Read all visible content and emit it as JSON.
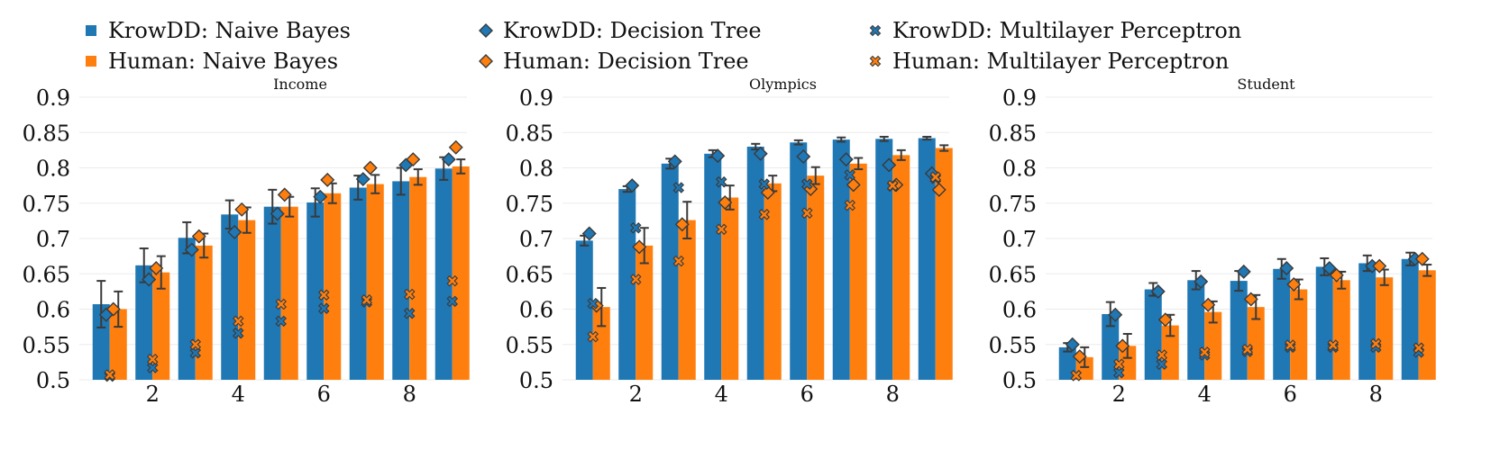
{
  "colors": {
    "krowdd": "#1f77b4",
    "human": "#ff7f0e",
    "error": "#3a3a3a",
    "grid": "#ebebeb",
    "marker_edge": "#3a3a3a"
  },
  "legend": {
    "placement": "top",
    "entries": [
      {
        "label": "KrowDD: Naive Bayes",
        "marker": "square",
        "color": "#1f77b4"
      },
      {
        "label": "KrowDD: Decision Tree",
        "marker": "diamond",
        "color": "#1f77b4"
      },
      {
        "label": "KrowDD: Multilayer Perceptron",
        "marker": "x",
        "color": "#1f77b4"
      },
      {
        "label": "Human: Naive Bayes",
        "marker": "square",
        "color": "#ff7f0e"
      },
      {
        "label": "Human: Decision Tree",
        "marker": "diamond",
        "color": "#ff7f0e"
      },
      {
        "label": "Human: Multilayer Perceptron",
        "marker": "x",
        "color": "#ff7f0e"
      }
    ]
  },
  "chart_data": [
    {
      "type": "bar",
      "title": "Income",
      "x": [
        1,
        2,
        3,
        4,
        5,
        6,
        7,
        8,
        9
      ],
      "xticks": [
        2,
        4,
        6,
        8
      ],
      "ylim": [
        0.5,
        0.9
      ],
      "yticks": [
        0.5,
        0.55,
        0.6,
        0.65,
        0.7,
        0.75,
        0.8,
        0.85,
        0.9
      ],
      "grid": true,
      "series": [
        {
          "name": "KrowDD: Naive Bayes",
          "kind": "bar",
          "values": [
            0.607,
            0.662,
            0.701,
            0.734,
            0.745,
            0.751,
            0.772,
            0.781,
            0.799
          ],
          "err": [
            0.033,
            0.024,
            0.022,
            0.02,
            0.024,
            0.02,
            0.017,
            0.019,
            0.016
          ]
        },
        {
          "name": "Human: Naive Bayes",
          "kind": "bar",
          "values": [
            0.6,
            0.652,
            0.69,
            0.726,
            0.745,
            0.764,
            0.777,
            0.787,
            0.802
          ],
          "err": [
            0.025,
            0.023,
            0.017,
            0.018,
            0.014,
            0.014,
            0.013,
            0.011,
            0.01
          ]
        },
        {
          "name": "KrowDD: Decision Tree",
          "kind": "diamond",
          "values": [
            0.592,
            0.642,
            0.684,
            0.709,
            0.735,
            0.759,
            0.784,
            0.804,
            0.812
          ]
        },
        {
          "name": "Human: Decision Tree",
          "kind": "diamond",
          "values": [
            0.6,
            0.658,
            0.703,
            0.741,
            0.762,
            0.783,
            0.8,
            0.812,
            0.829
          ]
        },
        {
          "name": "KrowDD: Multilayer Perceptron",
          "kind": "x",
          "values": [
            0.505,
            0.517,
            0.538,
            0.566,
            0.583,
            0.601,
            0.61,
            0.594,
            0.611
          ]
        },
        {
          "name": "Human: Multilayer Perceptron",
          "kind": "x",
          "values": [
            0.507,
            0.529,
            0.55,
            0.583,
            0.607,
            0.62,
            0.613,
            0.621,
            0.64
          ]
        }
      ]
    },
    {
      "type": "bar",
      "title": "Olympics",
      "x": [
        1,
        2,
        3,
        4,
        5,
        6,
        7,
        8,
        9
      ],
      "xticks": [
        2,
        4,
        6,
        8
      ],
      "ylim": [
        0.5,
        0.9
      ],
      "yticks": [
        0.5,
        0.55,
        0.6,
        0.65,
        0.7,
        0.75,
        0.8,
        0.85,
        0.9
      ],
      "grid": true,
      "series": [
        {
          "name": "KrowDD: Naive Bayes",
          "kind": "bar",
          "values": [
            0.697,
            0.77,
            0.806,
            0.82,
            0.83,
            0.836,
            0.84,
            0.841,
            0.842
          ],
          "err": [
            0.007,
            0.004,
            0.007,
            0.005,
            0.004,
            0.003,
            0.003,
            0.003,
            0.002
          ]
        },
        {
          "name": "Human: Naive Bayes",
          "kind": "bar",
          "values": [
            0.603,
            0.69,
            0.726,
            0.758,
            0.778,
            0.789,
            0.806,
            0.818,
            0.828
          ],
          "err": [
            0.027,
            0.025,
            0.026,
            0.017,
            0.011,
            0.012,
            0.008,
            0.007,
            0.004
          ]
        },
        {
          "name": "KrowDD: Decision Tree",
          "kind": "diamond",
          "values": [
            0.707,
            0.775,
            0.809,
            0.817,
            0.82,
            0.816,
            0.812,
            0.804,
            0.792
          ]
        },
        {
          "name": "Human: Decision Tree",
          "kind": "diamond",
          "values": [
            0.605,
            0.688,
            0.72,
            0.751,
            0.765,
            0.77,
            0.776,
            0.776,
            0.769
          ]
        },
        {
          "name": "KrowDD: Multilayer Perceptron",
          "kind": "x",
          "values": [
            0.608,
            0.715,
            0.772,
            0.78,
            0.777,
            0.777,
            0.79,
            0.774,
            0.785
          ]
        },
        {
          "name": "Human: Multilayer Perceptron",
          "kind": "x",
          "values": [
            0.561,
            0.642,
            0.668,
            0.713,
            0.734,
            0.736,
            0.747,
            0.775,
            0.787
          ]
        }
      ]
    },
    {
      "type": "bar",
      "title": "Student",
      "x": [
        1,
        2,
        3,
        4,
        5,
        6,
        7,
        8,
        9
      ],
      "xticks": [
        2,
        4,
        6,
        8
      ],
      "ylim": [
        0.5,
        0.9
      ],
      "yticks": [
        0.5,
        0.55,
        0.6,
        0.65,
        0.7,
        0.75,
        0.8,
        0.85,
        0.9
      ],
      "grid": true,
      "series": [
        {
          "name": "KrowDD: Naive Bayes",
          "kind": "bar",
          "values": [
            0.546,
            0.593,
            0.628,
            0.641,
            0.64,
            0.657,
            0.66,
            0.665,
            0.671
          ],
          "err": [
            0.006,
            0.017,
            0.009,
            0.013,
            0.014,
            0.014,
            0.012,
            0.011,
            0.009
          ]
        },
        {
          "name": "Human: Naive Bayes",
          "kind": "bar",
          "values": [
            0.532,
            0.548,
            0.577,
            0.596,
            0.603,
            0.628,
            0.641,
            0.645,
            0.655
          ],
          "err": [
            0.014,
            0.017,
            0.015,
            0.015,
            0.017,
            0.014,
            0.012,
            0.011,
            0.008
          ]
        },
        {
          "name": "KrowDD: Decision Tree",
          "kind": "diamond",
          "values": [
            0.55,
            0.592,
            0.625,
            0.639,
            0.653,
            0.658,
            0.658,
            0.661,
            0.671
          ]
        },
        {
          "name": "Human: Decision Tree",
          "kind": "diamond",
          "values": [
            0.533,
            0.548,
            0.585,
            0.606,
            0.614,
            0.635,
            0.648,
            0.661,
            0.671
          ]
        },
        {
          "name": "KrowDD: Multilayer Perceptron",
          "kind": "x",
          "values": [
            0.506,
            0.51,
            0.522,
            0.535,
            0.54,
            0.546,
            0.546,
            0.546,
            0.539
          ]
        },
        {
          "name": "Human: Multilayer Perceptron",
          "kind": "x",
          "values": [
            0.506,
            0.522,
            0.535,
            0.539,
            0.543,
            0.549,
            0.549,
            0.551,
            0.545
          ]
        }
      ]
    }
  ]
}
